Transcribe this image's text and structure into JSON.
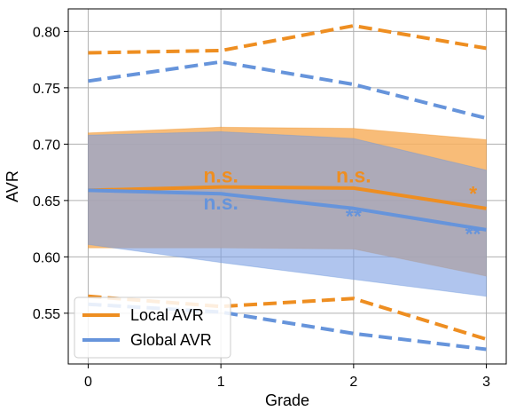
{
  "chart_data": {
    "type": "line",
    "xlabel": "Grade",
    "ylabel": "AVR",
    "x": [
      0,
      1,
      2,
      3
    ],
    "xlim": [
      -0.15,
      3.15
    ],
    "ylim": [
      0.505,
      0.82
    ],
    "xticks": [
      0,
      1,
      2,
      3
    ],
    "yticks": [
      0.55,
      0.6,
      0.65,
      0.7,
      0.75,
      0.8
    ],
    "ytick_labels": [
      "0.55",
      "0.60",
      "0.65",
      "0.70",
      "0.75",
      "0.80"
    ],
    "grid": true,
    "legend_position": "lower-left",
    "series": [
      {
        "name": "Local AVR",
        "color": "#ee8e21",
        "mean": [
          0.659,
          0.662,
          0.661,
          0.643
        ],
        "band_upper": [
          0.71,
          0.715,
          0.714,
          0.704
        ],
        "band_lower": [
          0.608,
          0.608,
          0.607,
          0.583
        ],
        "dashed_upper": [
          0.781,
          0.783,
          0.805,
          0.785
        ],
        "dashed_lower": [
          0.565,
          0.556,
          0.563,
          0.527
        ]
      },
      {
        "name": "Global AVR",
        "color": "#6694db",
        "mean": [
          0.659,
          0.656,
          0.643,
          0.624
        ],
        "band_upper": [
          0.708,
          0.711,
          0.705,
          0.677
        ],
        "band_lower": [
          0.611,
          0.595,
          0.58,
          0.565
        ],
        "dashed_upper": [
          0.756,
          0.773,
          0.753,
          0.723
        ],
        "dashed_lower": [
          0.558,
          0.551,
          0.532,
          0.518
        ]
      }
    ],
    "annotations": [
      {
        "text": "n.s.",
        "x": 1,
        "y": 0.666,
        "series": 0
      },
      {
        "text": "n.s.",
        "x": 1,
        "y": 0.642,
        "series": 1
      },
      {
        "text": "n.s.",
        "x": 2,
        "y": 0.666,
        "series": 0
      },
      {
        "text": "**",
        "x": 2,
        "y": 0.63,
        "series": 1
      },
      {
        "text": "*",
        "x": 2.9,
        "y": 0.65,
        "series": 0
      },
      {
        "text": "**",
        "x": 2.9,
        "y": 0.614,
        "series": 1
      }
    ]
  }
}
